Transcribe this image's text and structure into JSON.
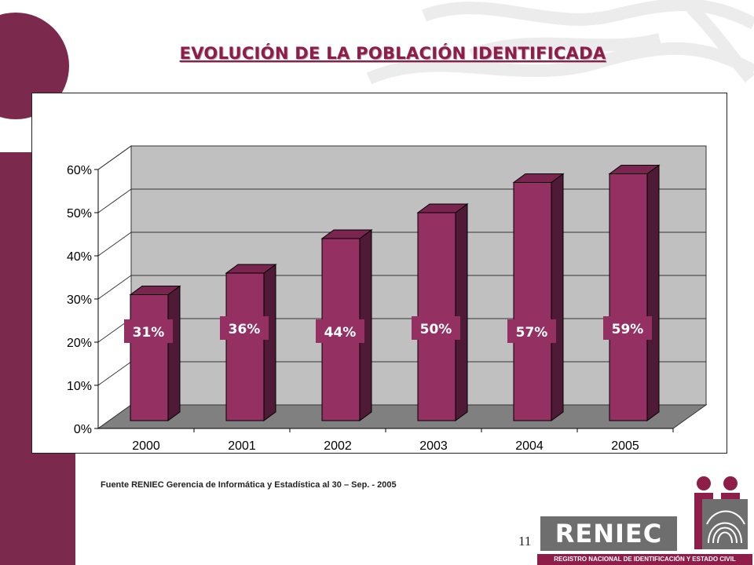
{
  "slide": {
    "title": "EVOLUCIÓN DE LA POBLACIÓN IDENTIFICADA",
    "source": "Fuente RENIEC Gerencia de Informática y  Estadística al 30 – Sep. - 2005",
    "page_number": "11"
  },
  "logo": {
    "wordmark": "RENIEC",
    "subtitle": "REGISTRO NACIONAL DE IDENTIFICACIÓN Y ESTADO CIVIL"
  },
  "colors": {
    "accent": "#8f1d4a",
    "bar_front": "#943162",
    "bar_side": "#4f1a35",
    "bar_top": "#7a2450",
    "back_wall": "#c0c0c0",
    "floor": "#808080"
  },
  "chart_data": {
    "type": "bar",
    "categories": [
      "2000",
      "2001",
      "2002",
      "2003",
      "2004",
      "2005"
    ],
    "values": [
      31,
      36,
      44,
      50,
      57,
      59
    ],
    "data_labels": [
      "31%",
      "36%",
      "44%",
      "50%",
      "57%",
      "59%"
    ],
    "yticks": [
      "0%",
      "10%",
      "20%",
      "30%",
      "40%",
      "50%",
      "60%"
    ],
    "ylim": [
      0,
      60
    ],
    "grid": true,
    "three_d": true,
    "legend": "none",
    "title": "",
    "xlabel": "",
    "ylabel": ""
  }
}
